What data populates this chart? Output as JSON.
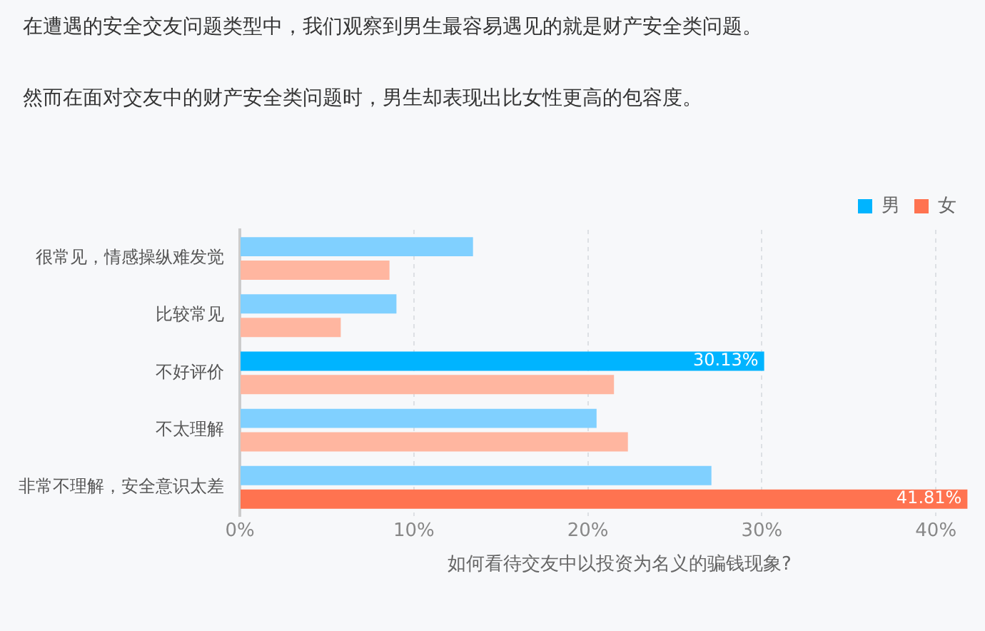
{
  "chart_data": {
    "type": "bar",
    "orientation": "horizontal",
    "title": "在遭遇的安全交友问题类型中，我们观察到男生最容易遇见的就是财产安全类问题。",
    "subtitle": "然而在面对交友中的财产安全类问题时，男生却表现出比女性更高的包容度。",
    "xlabel": "如何看待交友中以投资为名义的骗钱现象?",
    "categories": [
      "很常见，情感操纵难发觉",
      "比较常见",
      "不好评价",
      "不太理解",
      "非常不理解，安全意识太差"
    ],
    "series": [
      {
        "name": "男",
        "color": "#00b4ff",
        "colors": [
          "#80d0ff",
          "#80d0ff",
          "#00b4ff",
          "#80d0ff",
          "#80d0ff"
        ],
        "values": [
          13.4,
          9.0,
          30.13,
          20.5,
          27.1
        ],
        "value_labels": [
          null,
          null,
          "30.13%",
          null,
          null
        ]
      },
      {
        "name": "女",
        "color": "#ff7350",
        "colors": [
          "#ffb6a0",
          "#ffb6a0",
          "#ffb6a0",
          "#ffb6a0",
          "#ff7350"
        ],
        "values": [
          8.6,
          5.8,
          21.5,
          22.3,
          41.81
        ],
        "value_labels": [
          null,
          null,
          null,
          null,
          "41.81%"
        ]
      }
    ],
    "xlim": [
      0,
      42
    ],
    "xticks": [
      {
        "value": 0,
        "label": "0%"
      },
      {
        "value": 10,
        "label": "10%"
      },
      {
        "value": 20,
        "label": "20%"
      },
      {
        "value": 30,
        "label": "30%"
      },
      {
        "value": 40,
        "label": "40%"
      }
    ],
    "grid": "x",
    "legend": "top right"
  }
}
